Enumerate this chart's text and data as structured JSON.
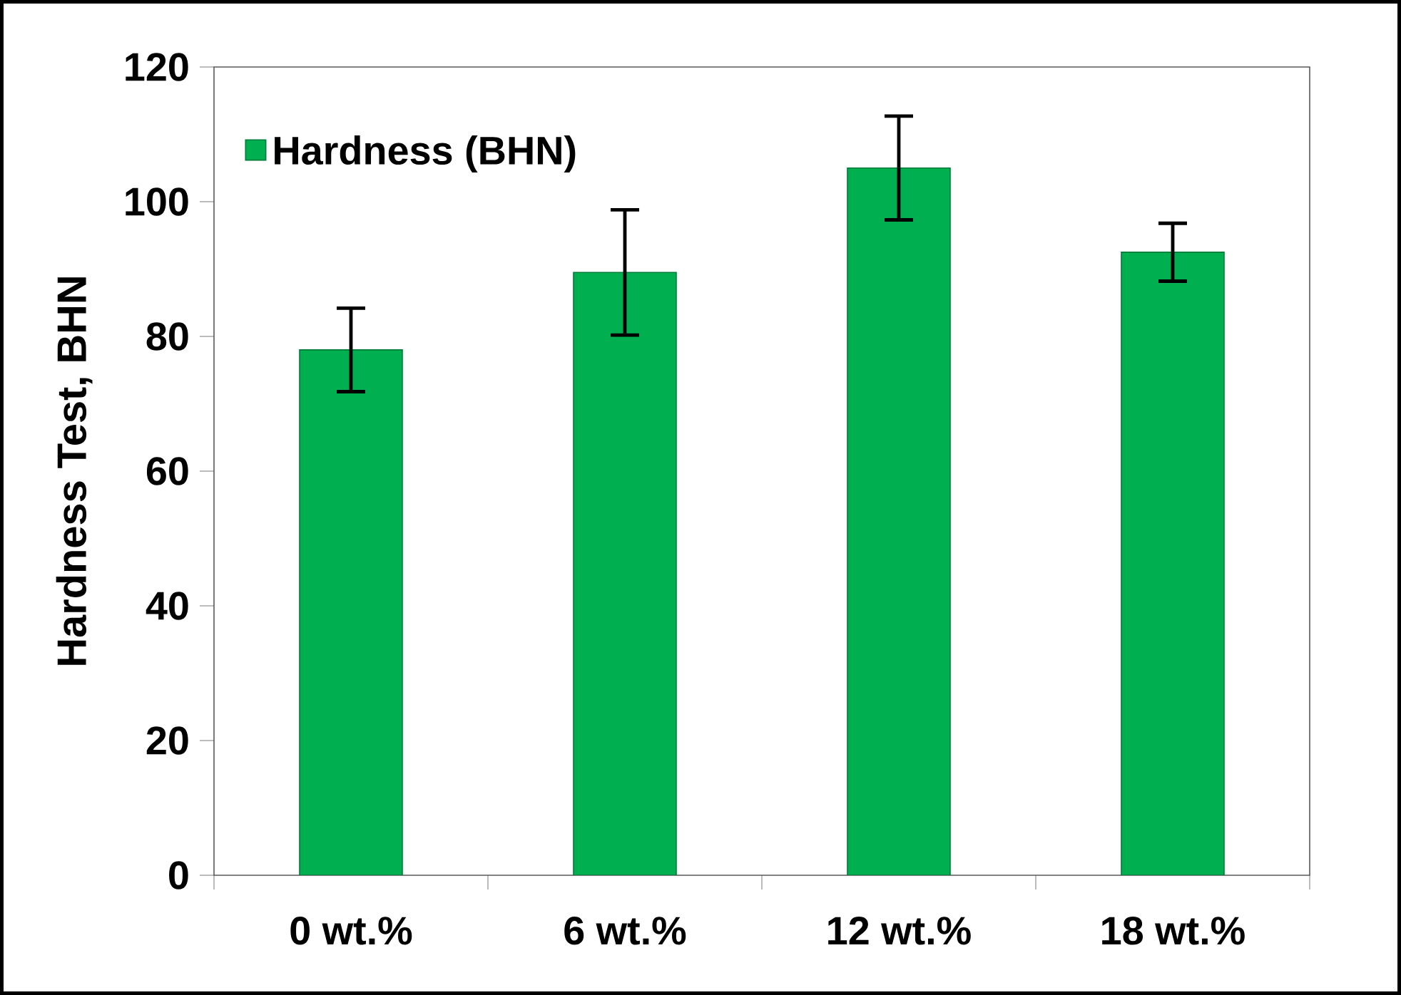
{
  "chart_data": {
    "type": "bar",
    "ylabel": "Hardness Test, BHN",
    "categories": [
      "0 wt.%",
      "6 wt.%",
      "12 wt.%",
      "18 wt.%"
    ],
    "series": [
      {
        "name": "Hardness (BHN)",
        "color": "#00b050",
        "values": [
          78,
          89.5,
          105,
          92.5
        ],
        "errors": [
          6.2,
          9.3,
          7.7,
          4.3
        ]
      }
    ],
    "ylim": [
      0,
      120
    ],
    "yticks": [
      0,
      20,
      40,
      60,
      80,
      100,
      120
    ],
    "grid": false,
    "legend": "top left"
  }
}
